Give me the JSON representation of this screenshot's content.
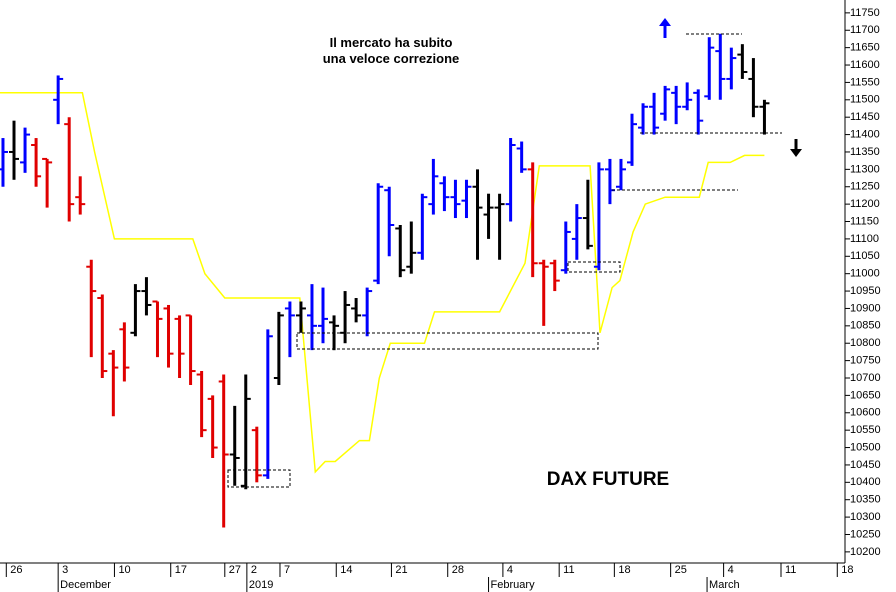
{
  "chart_data": {
    "type": "ohlc",
    "title": "DAX FUTURE",
    "annotation": "Il mercato ha subito una veloce correzione",
    "x": [
      0,
      1,
      2,
      3,
      4,
      5,
      6,
      7,
      8,
      9,
      10,
      11,
      12,
      13,
      14,
      15,
      16,
      17,
      18,
      19,
      20,
      21,
      22,
      23,
      24,
      25,
      26,
      27,
      28,
      29,
      30,
      31,
      32,
      33,
      34,
      35,
      36,
      37,
      38,
      39,
      40,
      41,
      42,
      43,
      44,
      45,
      46,
      47,
      48,
      49,
      50,
      51,
      52,
      53,
      54,
      55,
      56,
      57,
      58,
      59,
      60,
      61,
      62,
      63,
      64,
      65,
      66,
      67,
      68,
      69
    ],
    "open": [
      11300,
      11350,
      11320,
      11370,
      11330,
      11500,
      11430,
      11220,
      11020,
      10930,
      10770,
      10840,
      10830,
      10950,
      10920,
      10900,
      10870,
      10880,
      10710,
      10640,
      10690,
      10480,
      10390,
      10550,
      10420,
      10700,
      10900,
      10880,
      10880,
      10850,
      10860,
      10830,
      10900,
      10880,
      10980,
      11240,
      11130,
      11020,
      11060,
      11200,
      11260,
      11220,
      11210,
      11250,
      11170,
      11190,
      11200,
      11360,
      11300,
      11030,
      11030,
      11010,
      11100,
      11160,
      11020,
      11300,
      11250,
      11320,
      11420,
      11480,
      11460,
      11520,
      11480,
      11520,
      11510,
      11640,
      11560,
      11630,
      11560,
      11480
    ],
    "high": [
      11390,
      11440,
      11420,
      11390,
      11330,
      11570,
      11450,
      11280,
      11040,
      10940,
      10780,
      10860,
      10970,
      10990,
      10920,
      10910,
      10880,
      10880,
      10720,
      10650,
      10710,
      10620,
      10710,
      10560,
      10840,
      10890,
      10920,
      10920,
      10970,
      10960,
      10880,
      10950,
      10930,
      10960,
      11260,
      11250,
      11140,
      11150,
      11230,
      11330,
      11280,
      11270,
      11270,
      11300,
      11230,
      11230,
      11390,
      11380,
      11320,
      11040,
      11040,
      11150,
      11200,
      11270,
      11320,
      11330,
      11330,
      11460,
      11490,
      11520,
      11540,
      11540,
      11550,
      11530,
      11680,
      11690,
      11650,
      11660,
      11620,
      11500
    ],
    "low": [
      11250,
      11270,
      11290,
      11250,
      11190,
      11430,
      11150,
      11170,
      10760,
      10700,
      10590,
      10690,
      10820,
      10880,
      10760,
      10730,
      10700,
      10680,
      10530,
      10470,
      10270,
      10390,
      10380,
      10400,
      10410,
      10680,
      10760,
      10830,
      10780,
      10800,
      10780,
      10800,
      10860,
      10820,
      10970,
      11050,
      10990,
      11000,
      11040,
      11170,
      11180,
      11160,
      11160,
      11040,
      11100,
      11040,
      11150,
      11290,
      10990,
      10850,
      10950,
      11000,
      11040,
      11070,
      11010,
      11200,
      11240,
      11310,
      11400,
      11400,
      11440,
      11430,
      11470,
      11400,
      11500,
      11500,
      11530,
      11560,
      11450,
      11400
    ],
    "close": [
      11350,
      11330,
      11400,
      11280,
      11320,
      11560,
      11200,
      11200,
      10950,
      10720,
      10730,
      10730,
      10950,
      10910,
      10870,
      10770,
      10770,
      10720,
      10550,
      10500,
      10480,
      10470,
      10640,
      10420,
      10820,
      10880,
      10880,
      10900,
      10850,
      10870,
      10850,
      10910,
      10880,
      10950,
      11250,
      11140,
      11010,
      11060,
      11220,
      11280,
      11220,
      11200,
      11250,
      11190,
      11190,
      11200,
      11370,
      11300,
      11030,
      11020,
      10980,
      11120,
      11160,
      11080,
      11300,
      11240,
      11300,
      11430,
      11480,
      11420,
      11530,
      11480,
      11500,
      11440,
      11650,
      11560,
      11620,
      11580,
      11480,
      11490
    ],
    "colors": [
      "#0000ff",
      "#000000",
      "#0000ff",
      "#e00000",
      "#e00000",
      "#0000ff",
      "#e00000",
      "#e00000",
      "#e00000",
      "#e00000",
      "#e00000",
      "#e00000",
      "#000000",
      "#000000",
      "#e00000",
      "#e00000",
      "#e00000",
      "#e00000",
      "#e00000",
      "#e00000",
      "#e00000",
      "#000000",
      "#000000",
      "#e00000",
      "#0000ff",
      "#000000",
      "#0000ff",
      "#000000",
      "#0000ff",
      "#0000ff",
      "#000000",
      "#000000",
      "#000000",
      "#0000ff",
      "#0000ff",
      "#0000ff",
      "#000000",
      "#000000",
      "#0000ff",
      "#0000ff",
      "#0000ff",
      "#0000ff",
      "#0000ff",
      "#000000",
      "#000000",
      "#000000",
      "#0000ff",
      "#0000ff",
      "#e00000",
      "#e00000",
      "#e00000",
      "#0000ff",
      "#0000ff",
      "#000000",
      "#0000ff",
      "#0000ff",
      "#0000ff",
      "#0000ff",
      "#0000ff",
      "#0000ff",
      "#0000ff",
      "#0000ff",
      "#0000ff",
      "#0000ff",
      "#0000ff",
      "#0000ff",
      "#0000ff",
      "#000000",
      "#000000",
      "#000000"
    ],
    "line": {
      "color": "#ffff00",
      "x": [
        -0.3,
        7.2,
        8.3,
        10.1,
        17.2,
        18.3,
        20.1,
        26.9,
        28.3,
        29.2,
        30.1,
        32.3,
        33.2,
        34.1,
        35.1,
        38.2,
        39.1,
        45.0,
        47.3,
        48.6,
        53.2,
        54.1,
        55.2,
        55.9,
        57.1,
        58.2,
        60.0,
        63.1,
        63.9,
        65.9,
        67.2,
        69.0
      ],
      "values": [
        11520,
        11520,
        11350,
        11100,
        11100,
        11000,
        10930,
        10930,
        10430,
        10460,
        10460,
        10520,
        10520,
        10700,
        10800,
        10800,
        10890,
        10890,
        11030,
        11310,
        11310,
        10830,
        10960,
        10980,
        11120,
        11200,
        11220,
        11220,
        11320,
        11320,
        11340,
        11340
      ]
    },
    "xlim": [
      -0.27,
      76.3
    ],
    "ylim": [
      10168,
      11787
    ],
    "yticks": [
      10200,
      10250,
      10300,
      10350,
      10400,
      10450,
      10500,
      10550,
      10600,
      10650,
      10700,
      10750,
      10800,
      10850,
      10900,
      10950,
      11000,
      11050,
      11100,
      11150,
      11200,
      11250,
      11300,
      11350,
      11400,
      11450,
      11500,
      11550,
      11600,
      11650,
      11700,
      11750
    ],
    "xticks": [
      {
        "value": 0.3,
        "label": "26"
      },
      {
        "value": 5.0,
        "label": "3"
      },
      {
        "value": 10.1,
        "label": "10"
      },
      {
        "value": 15.2,
        "label": "17"
      },
      {
        "value": 20.1,
        "label": "27"
      },
      {
        "value": 22.1,
        "label": "2"
      },
      {
        "value": 25.1,
        "label": "7"
      },
      {
        "value": 30.2,
        "label": "14"
      },
      {
        "value": 35.2,
        "label": "21"
      },
      {
        "value": 40.3,
        "label": "28"
      },
      {
        "value": 45.3,
        "label": "4"
      },
      {
        "value": 50.4,
        "label": "11"
      },
      {
        "value": 55.4,
        "label": "18"
      },
      {
        "value": 60.5,
        "label": "25"
      },
      {
        "value": 65.3,
        "label": "4"
      },
      {
        "value": 70.5,
        "label": "11"
      },
      {
        "value": 75.6,
        "label": "18"
      }
    ],
    "months": [
      {
        "value": 5.0,
        "label": "December"
      },
      {
        "value": 22.1,
        "label": "2019"
      },
      {
        "value": 44.0,
        "label": "February"
      },
      {
        "value": 63.8,
        "label": "March"
      }
    ]
  }
}
